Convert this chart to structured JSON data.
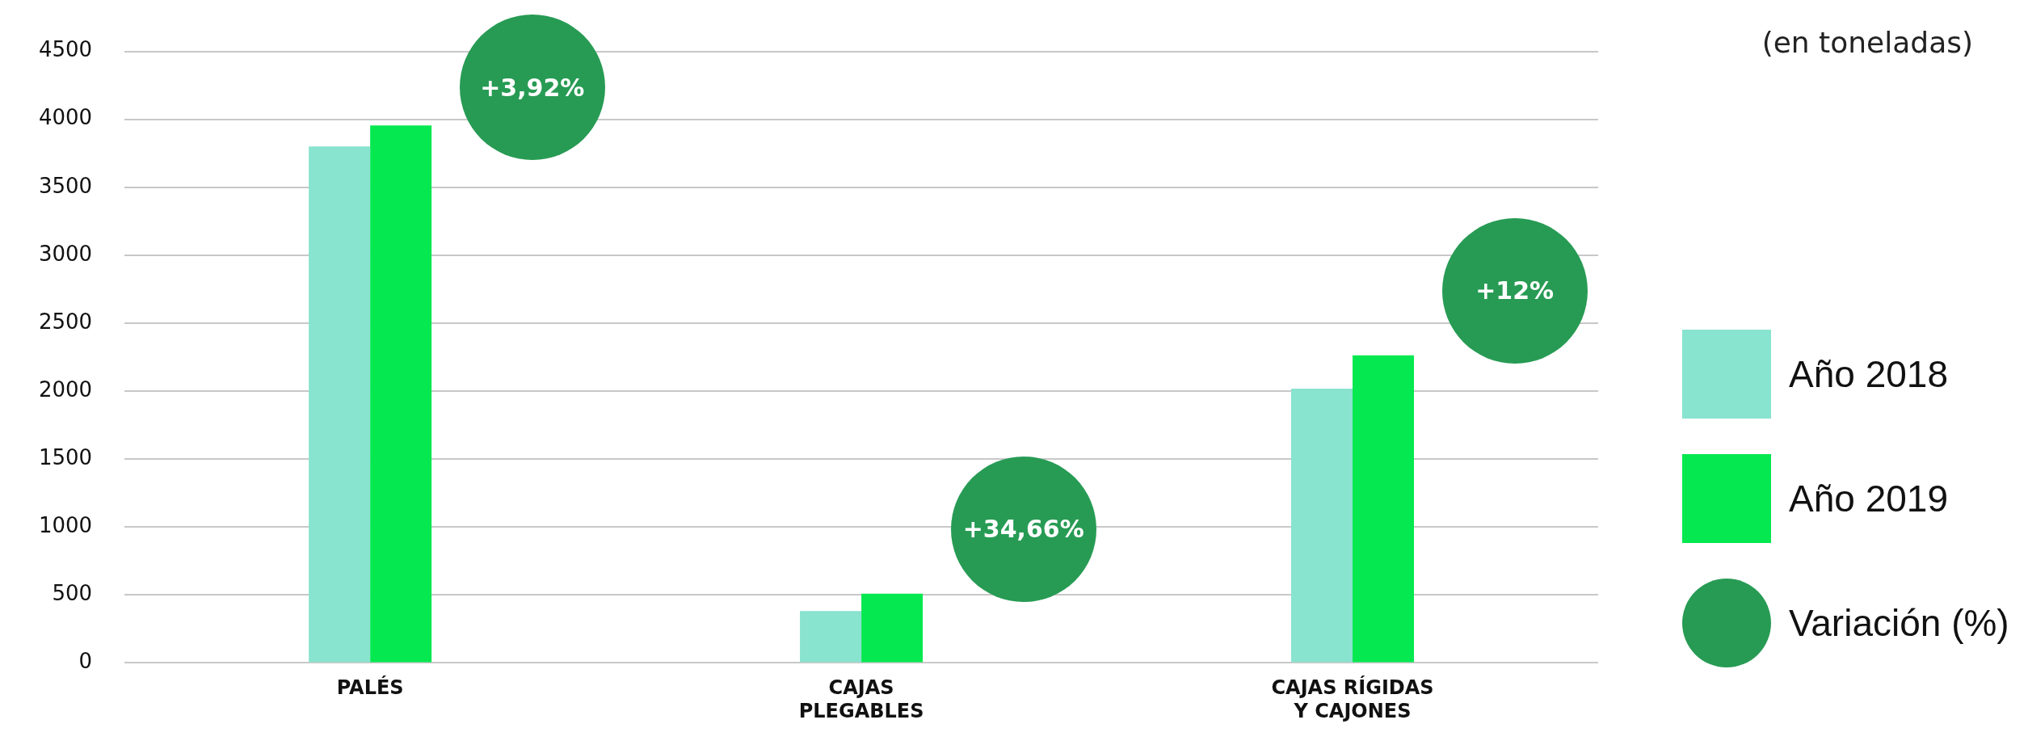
{
  "chart_data": {
    "type": "bar",
    "categories": [
      "PALÉS",
      "CAJAS\nPLEGABLES",
      "CAJAS RÍGIDAS\nY CAJONES"
    ],
    "series": [
      {
        "name": "Año 2018",
        "color": "#88e3cf",
        "values": [
          3800,
          382,
          2018
        ]
      },
      {
        "name": "Año 2019",
        "color": "#05e850",
        "values": [
          3955,
          509,
          2264
        ]
      }
    ],
    "ylim": [
      0,
      4500
    ],
    "yticks": [
      0,
      500,
      1000,
      1500,
      2000,
      2500,
      3000,
      3500,
      4000,
      4500
    ],
    "grid": "y",
    "legend": "right",
    "annotations": [
      "(en toneladas)",
      "Variación (%)",
      "+3,92%",
      "+34,66%",
      "+12%"
    ]
  }
}
